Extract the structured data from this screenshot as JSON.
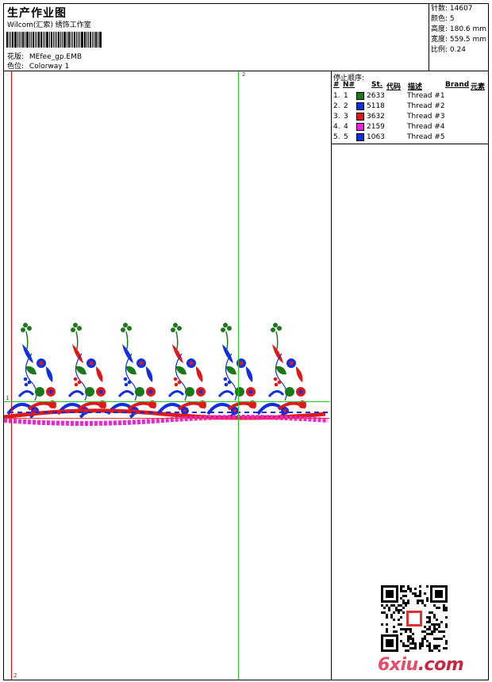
{
  "header": {
    "title": "生产作业图",
    "studio": "Wilcom(汇索) 绣饰工作室",
    "design_label": "花版:",
    "design_value": "MEfee_gp.EMB",
    "colorway_label": "色位:",
    "colorway_value": "Colorway 1"
  },
  "stats": {
    "stitches": "针数: 14607",
    "colors": "颜色: 5",
    "height": "高度: 180.6 mm",
    "width": "宽度: 559.5 mm",
    "scale": "比例: 0.24"
  },
  "canvas": {
    "marker_top": "2",
    "marker_left": "1",
    "marker_bottom": "2"
  },
  "stop_sequence": {
    "title": "停止顺序:",
    "columns": [
      "#",
      "N#",
      "St.",
      "代码",
      "描述",
      "Brand",
      "元素"
    ],
    "rows": [
      {
        "idx": "1.",
        "n": "1",
        "color": "#1a7a1a",
        "code": "2633",
        "desc": "Thread #1"
      },
      {
        "idx": "2.",
        "n": "2",
        "color": "#1030e0",
        "code": "5118",
        "desc": "Thread #2"
      },
      {
        "idx": "3.",
        "n": "3",
        "color": "#e01818",
        "code": "3632",
        "desc": "Thread #3"
      },
      {
        "idx": "4.",
        "n": "4",
        "color": "#f020e0",
        "code": "2159",
        "desc": "Thread #4"
      },
      {
        "idx": "5.",
        "n": "5",
        "color": "#1030e0",
        "code": "1063",
        "desc": "Thread #5"
      }
    ]
  },
  "watermark": {
    "logo_main": "6xiu",
    "logo_tail": ".com",
    "qr_icon": "qr-code-icon"
  }
}
